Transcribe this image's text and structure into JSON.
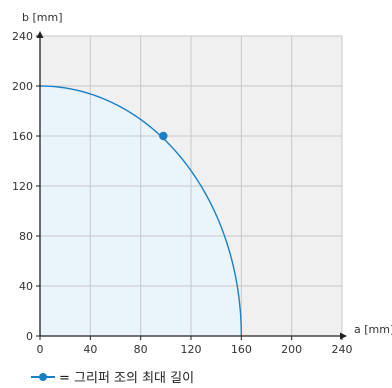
{
  "chart_data": {
    "type": "area",
    "xlabel": "a [mm]",
    "ylabel": "b [mm]",
    "xlim": [
      0,
      240
    ],
    "ylim": [
      0,
      240
    ],
    "x_ticks": [
      0,
      40,
      80,
      120,
      160,
      200,
      240
    ],
    "y_ticks": [
      0,
      40,
      80,
      120,
      160,
      200,
      240
    ],
    "grid": true,
    "curve": {
      "shape": "quarter-ellipse",
      "a_max": 160,
      "b_max": 200
    },
    "point": {
      "x": 98,
      "y": 160
    },
    "legend": {
      "label": "= 그리퍼 조의 최대 길이",
      "position": "bottom-left"
    },
    "colors": {
      "line": "#1a7fc4",
      "fill": "#eaf4fb",
      "grid": "#c8c8c8",
      "plot_bg": "#f0f0f0",
      "axis": "#222222"
    }
  }
}
